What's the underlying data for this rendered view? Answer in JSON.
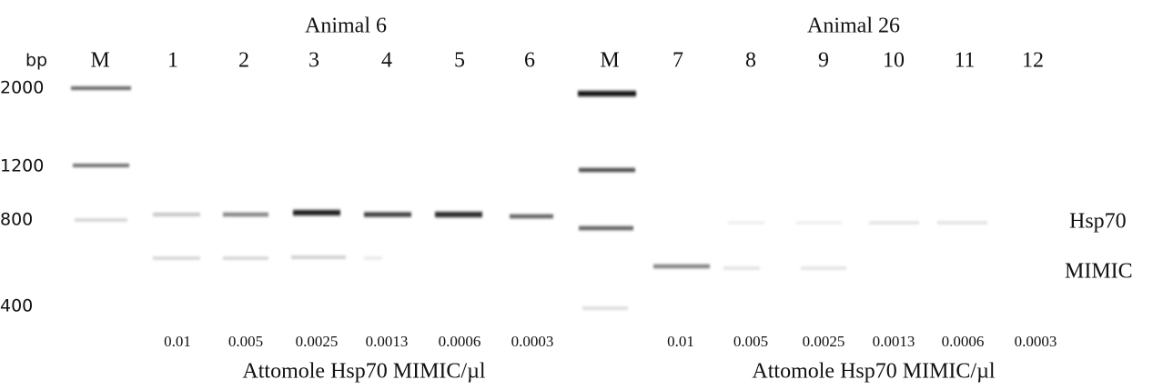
{
  "groups": [
    "Animal 6",
    "Animal 26"
  ],
  "lane_header": "bp",
  "lanes": [
    "M",
    "1",
    "2",
    "3",
    "4",
    "5",
    "6",
    "M",
    "7",
    "8",
    "9",
    "10",
    "11",
    "12"
  ],
  "size_markers": [
    "2000",
    "1200",
    "800",
    "400"
  ],
  "band_labels": [
    "Hsp70",
    "MIMIC"
  ],
  "concentrations": [
    "0.01",
    "0.005",
    "0.0025",
    "0.0013",
    "0.0006",
    "0.0003",
    "0.01",
    "0.005",
    "0.0025",
    "0.0013",
    "0.0006",
    "0.0003"
  ],
  "captions": [
    "Attomole Hsp70 MIMIC/µl",
    "Attomole Hsp70 MIMIC/µl"
  ]
}
